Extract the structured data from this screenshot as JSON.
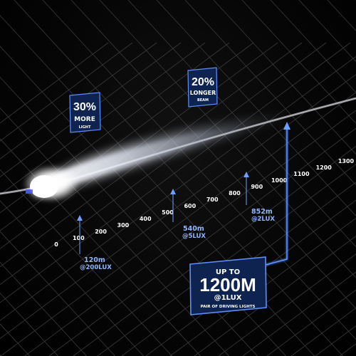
{
  "badge_30": {
    "line1": "30%",
    "line2": "MORE",
    "line3": "LIGHT"
  },
  "badge_20": {
    "line1": "20%",
    "line2": "LONGER",
    "line3": "BEAM"
  },
  "main_badge": {
    "line1": "UP TO",
    "line2": "1200M",
    "line3": "@1LUX",
    "line4": "PAIR OF DRIVING LIGHTS"
  },
  "scale_ticks": [
    "0",
    "100",
    "200",
    "300",
    "400",
    "500",
    "600",
    "700",
    "800",
    "900",
    "1000",
    "1100",
    "1200",
    "1300"
  ],
  "annotations": [
    {
      "distance": "120m",
      "lux": "@200LUX"
    },
    {
      "distance": "540m",
      "lux": "@5LUX"
    },
    {
      "distance": "852m",
      "lux": "@2LUX"
    }
  ],
  "colors": {
    "accent": "#3c7dff",
    "badge_bg": "#0e2350",
    "badge_border": "#5f8fff",
    "annotation": "#8fb4ff"
  }
}
